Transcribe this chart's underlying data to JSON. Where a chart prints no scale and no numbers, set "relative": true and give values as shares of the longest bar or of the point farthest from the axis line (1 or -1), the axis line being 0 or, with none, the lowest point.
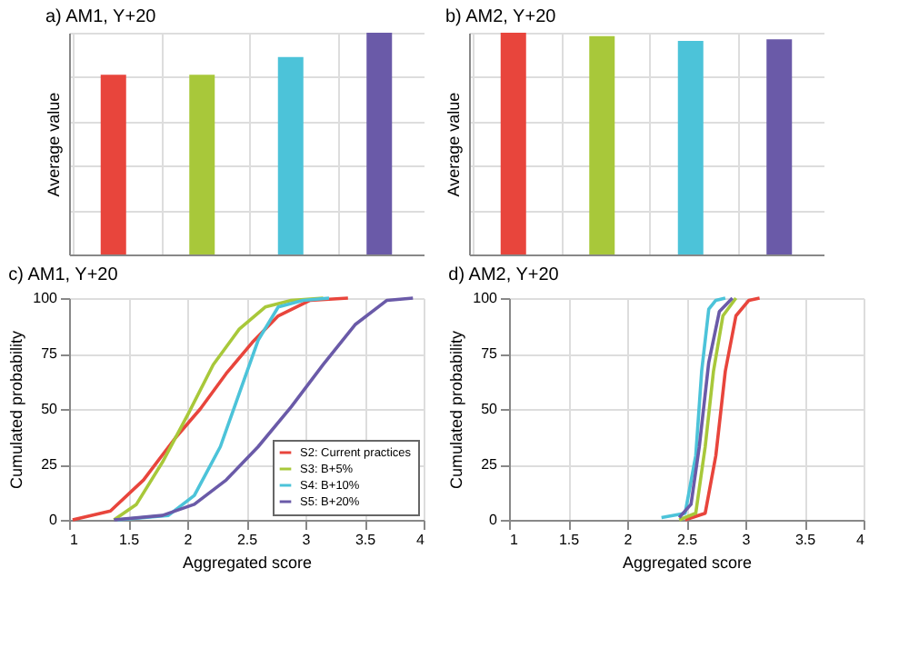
{
  "chart_data": [
    {
      "type": "bar",
      "title": "AM1, Y+20",
      "annotations": [
        "a)"
      ],
      "ylabel": "Average value",
      "categories": [
        null,
        null,
        null,
        null
      ],
      "values": [
        0.81,
        0.81,
        0.89,
        1
      ],
      "colors": [
        "#e8453c",
        "#a8c83a",
        "#4cc3d9",
        "#6a5aa8"
      ],
      "relative": true,
      "grid": true
    },
    {
      "type": "bar",
      "title": "AM2, Y+20",
      "annotations": [
        "b)"
      ],
      "ylabel": "Average value",
      "categories": [
        null,
        null,
        null,
        null
      ],
      "values": [
        1,
        0.985,
        0.963,
        0.97
      ],
      "colors": [
        "#e8453c",
        "#a8c83a",
        "#4cc3d9",
        "#6a5aa8"
      ],
      "relative": true,
      "grid": true
    },
    {
      "type": "line",
      "title": "AM1, Y+20",
      "annotations": [
        "c)"
      ],
      "ylabel": "Cumulated probability",
      "xlabel": "Aggregated score",
      "xlim": [
        1,
        4
      ],
      "xticks": [
        1,
        1.5,
        2,
        2.5,
        3,
        3.5,
        4
      ],
      "ylim": [
        0,
        100
      ],
      "yticks": [
        0,
        25,
        50,
        75,
        100
      ],
      "grid": true,
      "legend": "bottom right",
      "series": [
        {
          "name": "S2: Current practices",
          "color": "#e8453c",
          "x": [
            1.03,
            1.35,
            1.63,
            1.9,
            2.11,
            2.33,
            2.55,
            2.77,
            3.04,
            3.36
          ],
          "values": [
            0,
            4,
            18,
            37,
            50,
            66,
            80,
            92,
            99,
            100
          ]
        },
        {
          "name": "S3: B+5%",
          "color": "#a8c83a",
          "x": [
            1.38,
            1.57,
            1.79,
            2.01,
            2.22,
            2.44,
            2.66,
            2.88,
            3.15
          ],
          "values": [
            0,
            7,
            26,
            48,
            70,
            86,
            96,
            99,
            100
          ]
        },
        {
          "name": "S4: B+10%",
          "color": "#4cc3d9",
          "x": [
            1.41,
            1.84,
            2.06,
            2.28,
            2.44,
            2.6,
            2.77,
            2.98,
            3.2
          ],
          "values": [
            0,
            2,
            11,
            33,
            57,
            81,
            96,
            99,
            100
          ]
        },
        {
          "name": "S5: B+20%",
          "color": "#6a5aa8",
          "x": [
            1.38,
            1.79,
            2.06,
            2.33,
            2.6,
            2.88,
            3.15,
            3.42,
            3.69,
            3.91
          ],
          "values": [
            0,
            2,
            7,
            18,
            33,
            51,
            70,
            88,
            99,
            100
          ]
        }
      ]
    },
    {
      "type": "line",
      "title": "AM2, Y+20",
      "annotations": [
        "d)"
      ],
      "ylabel": "Cumulated probability",
      "xlabel": "Aggregated score",
      "xlim": [
        1,
        4
      ],
      "xticks": [
        1,
        1.5,
        2,
        2.5,
        3,
        3.5,
        4
      ],
      "ylim": [
        0,
        100
      ],
      "yticks": [
        0,
        25,
        50,
        75,
        100
      ],
      "grid": true,
      "series": [
        {
          "color": "#e8453c",
          "x": [
            2.49,
            2.66,
            2.75,
            2.83,
            2.92,
            3.03,
            3.12
          ],
          "values": [
            0,
            3,
            29,
            67,
            92,
            99,
            100
          ]
        },
        {
          "color": "#a8c83a",
          "x": [
            2.44,
            2.58,
            2.66,
            2.73,
            2.81,
            2.92
          ],
          "values": [
            0,
            3,
            33,
            67,
            92,
            100
          ]
        },
        {
          "color": "#4cc3d9",
          "x": [
            2.29,
            2.49,
            2.58,
            2.63,
            2.69,
            2.75,
            2.83
          ],
          "values": [
            1,
            3,
            29,
            67,
            95,
            99,
            100
          ]
        },
        {
          "color": "#6a5aa8",
          "x": [
            2.44,
            2.54,
            2.61,
            2.69,
            2.78,
            2.89
          ],
          "values": [
            1,
            7,
            33,
            71,
            94,
            100
          ]
        }
      ]
    }
  ]
}
